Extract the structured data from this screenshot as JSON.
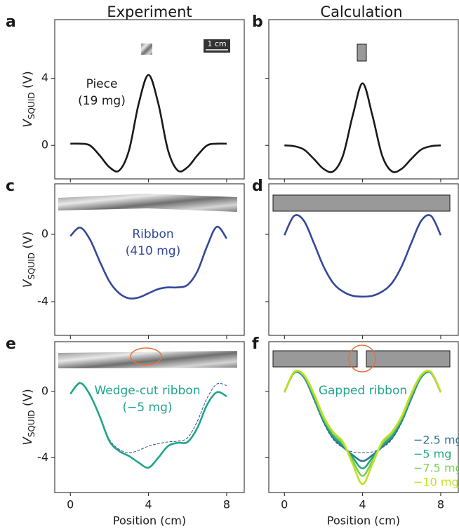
{
  "columns": [
    "Experiment",
    "Calculation"
  ],
  "chart_data": [
    {
      "type": "line",
      "label": "a",
      "annotation": [
        "Piece",
        "(19 mg)"
      ],
      "annotation_color": "#1a1a1a",
      "scale_bar": "1 cm",
      "ylabel": [
        "V",
        "SQUID",
        " (V)"
      ],
      "x": [
        0,
        0.5,
        1,
        1.5,
        2,
        2.5,
        3,
        3.5,
        4,
        4.5,
        5,
        5.5,
        6,
        6.5,
        7,
        7.5,
        8
      ],
      "series": [
        {
          "color": "#1a1a1a",
          "values": [
            0.1,
            0.1,
            0.0,
            -0.6,
            -1.3,
            -1.5,
            -0.3,
            2.5,
            4.2,
            2.5,
            -0.3,
            -1.5,
            -1.3,
            -0.6,
            0.0,
            0.1,
            0.1
          ]
        }
      ],
      "xlim": [
        -0.8,
        8.9
      ],
      "ylim": [
        -2,
        7.5
      ],
      "xticks": [
        0,
        4,
        8
      ],
      "yticks": [
        0,
        4
      ]
    },
    {
      "type": "line",
      "label": "b",
      "x": [
        0,
        0.5,
        1,
        1.5,
        2,
        2.5,
        3,
        3.5,
        4,
        4.5,
        5,
        5.5,
        6,
        6.5,
        7,
        7.5,
        8
      ],
      "series": [
        {
          "color": "#1a1a1a",
          "values": [
            0,
            -0.05,
            -0.25,
            -0.8,
            -1.4,
            -1.55,
            -0.6,
            1.8,
            3.7,
            1.8,
            -0.6,
            -1.55,
            -1.4,
            -0.8,
            -0.25,
            -0.05,
            0
          ]
        }
      ],
      "xlim": [
        -0.8,
        8.9
      ],
      "ylim": [
        -2,
        7.5
      ],
      "xticks": [
        0,
        4,
        8
      ],
      "yticks": [
        0,
        4
      ]
    },
    {
      "type": "line",
      "label": "c",
      "annotation": [
        "Ribbon",
        "(410 mg)"
      ],
      "annotation_color": "#34489a",
      "ylabel": [
        "V",
        "SQUID",
        " (V)"
      ],
      "x": [
        0,
        0.5,
        1,
        1.5,
        2,
        2.5,
        3,
        3.5,
        4,
        4.5,
        5,
        5.5,
        6,
        6.5,
        7,
        7.5,
        8
      ],
      "series": [
        {
          "color": "#34489a",
          "values": [
            -0.1,
            0.4,
            -0.3,
            -1.6,
            -2.8,
            -3.5,
            -3.8,
            -3.75,
            -3.5,
            -3.25,
            -3.15,
            -3.15,
            -3.0,
            -2.2,
            -0.7,
            0.45,
            -0.25
          ]
        }
      ],
      "xlim": [
        -0.8,
        8.9
      ],
      "ylim": [
        -6,
        3
      ],
      "xticks": [
        0,
        4,
        8
      ],
      "yticks": [
        -4,
        0
      ]
    },
    {
      "type": "line",
      "label": "d",
      "x": [
        0,
        0.5,
        1,
        1.5,
        2,
        2.5,
        3,
        3.5,
        4,
        4.5,
        5,
        5.5,
        6,
        6.5,
        7,
        7.5,
        8
      ],
      "series": [
        {
          "color": "#34489a",
          "values": [
            -0.05,
            1.1,
            0.8,
            -0.5,
            -1.9,
            -2.9,
            -3.4,
            -3.65,
            -3.7,
            -3.65,
            -3.4,
            -2.9,
            -1.9,
            -0.5,
            0.8,
            1.1,
            -0.05
          ]
        }
      ],
      "xlim": [
        -0.8,
        8.9
      ],
      "ylim": [
        -6,
        3
      ],
      "xticks": [
        0,
        4,
        8
      ],
      "yticks": [
        -4,
        0
      ]
    },
    {
      "type": "line",
      "label": "e",
      "annotation": [
        "Wedge-cut ribbon",
        "(−5 mg)"
      ],
      "annotation_color": "#20a58a",
      "ylabel": [
        "V",
        "SQUID",
        " (V)"
      ],
      "xlabel": "Position (cm)",
      "x": [
        0,
        0.5,
        1,
        1.5,
        2,
        2.5,
        3,
        3.5,
        4,
        4.5,
        5,
        5.5,
        6,
        6.5,
        7,
        7.5,
        8
      ],
      "series": [
        {
          "color": "#34489a",
          "dashed": true,
          "values": [
            -0.15,
            0.55,
            -0.2,
            -1.5,
            -2.9,
            -3.5,
            -3.7,
            -3.55,
            -3.3,
            -3.15,
            -3.05,
            -3.0,
            -2.8,
            -1.8,
            -0.4,
            0.45,
            0.35
          ]
        },
        {
          "color": "#20a58a",
          "values": [
            -0.15,
            0.5,
            -0.2,
            -1.5,
            -3.0,
            -3.6,
            -3.9,
            -4.3,
            -4.6,
            -4.0,
            -3.3,
            -3.1,
            -3.05,
            -2.2,
            -0.8,
            -0.05,
            -0.3
          ]
        }
      ],
      "xlim": [
        -0.8,
        8.9
      ],
      "ylim": [
        -6.1,
        3
      ],
      "xticks": [
        0,
        4,
        8
      ],
      "yticks": [
        -4,
        0
      ]
    },
    {
      "type": "line",
      "label": "f",
      "annotation": [
        "Gapped ribbon"
      ],
      "annotation_color": "#20a58a",
      "xlabel": "Position (cm)",
      "x": [
        0,
        0.5,
        1,
        1.5,
        2,
        2.5,
        3,
        3.5,
        4,
        4.5,
        5,
        5.5,
        6,
        6.5,
        7,
        7.5,
        8
      ],
      "series": [
        {
          "color": "#3b4a8f",
          "dashed": true,
          "values": [
            -0.05,
            1.1,
            0.8,
            -0.5,
            -1.9,
            -2.9,
            -3.4,
            -3.65,
            -3.7,
            -3.65,
            -3.4,
            -2.9,
            -1.9,
            -0.5,
            0.8,
            1.1,
            -0.05
          ]
        },
        {
          "name": "−2.5 mg",
          "color": "#2a788e",
          "values": [
            -0.05,
            1.12,
            0.85,
            -0.4,
            -1.8,
            -2.8,
            -3.35,
            -3.85,
            -4.2,
            -3.85,
            -3.35,
            -2.8,
            -1.8,
            -0.4,
            0.85,
            1.12,
            -0.05
          ]
        },
        {
          "name": "−5 mg",
          "color": "#22a884",
          "values": [
            -0.05,
            1.14,
            0.9,
            -0.3,
            -1.7,
            -2.7,
            -3.25,
            -4.0,
            -4.65,
            -4.0,
            -3.25,
            -2.7,
            -1.7,
            -0.3,
            0.9,
            1.14,
            -0.05
          ]
        },
        {
          "name": "−7.5 mg",
          "color": "#7ad151",
          "values": [
            -0.05,
            1.16,
            0.95,
            -0.2,
            -1.6,
            -2.55,
            -3.15,
            -4.2,
            -5.1,
            -4.2,
            -3.15,
            -2.55,
            -1.6,
            -0.2,
            0.95,
            1.16,
            -0.05
          ]
        },
        {
          "name": "−10 mg",
          "color": "#c2df23",
          "values": [
            -0.05,
            1.18,
            1.0,
            -0.1,
            -1.5,
            -2.45,
            -3.05,
            -4.4,
            -5.6,
            -4.4,
            -3.05,
            -2.45,
            -1.5,
            -0.1,
            1.0,
            1.18,
            -0.05
          ]
        }
      ],
      "xlim": [
        -0.8,
        8.9
      ],
      "ylim": [
        -6.1,
        3
      ],
      "xticks": [
        0,
        4,
        8
      ],
      "yticks": [
        -4,
        0
      ]
    }
  ]
}
